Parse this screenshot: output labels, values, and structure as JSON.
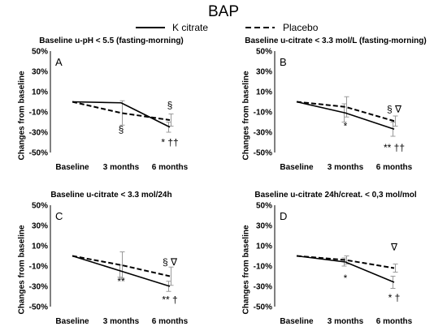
{
  "title": "BAP",
  "legend": {
    "k_citrate": "K citrate",
    "placebo": "Placebo"
  },
  "chart_data": [
    {
      "type": "line",
      "panel_letter": "A",
      "title": "Baseline u-pH < 5.5 (fasting-morning)",
      "ylabel": "Changes from baseline",
      "categories": [
        "Baseline",
        "3 months",
        "6 months"
      ],
      "y_ticks": [
        "50%",
        "30%",
        "10%",
        "-10%",
        "-30%",
        "-50%"
      ],
      "ylim": [
        -50,
        50
      ],
      "grid": false,
      "series": [
        {
          "name": "K citrate",
          "style": "solid",
          "values": [
            0,
            -1,
            -25
          ],
          "errors": [
            0,
            0,
            5
          ]
        },
        {
          "name": "Placebo",
          "style": "dashed",
          "values": [
            0,
            -11,
            -18
          ],
          "errors": [
            0,
            12,
            6
          ]
        }
      ],
      "annotations": [
        {
          "text": "§",
          "x": 1,
          "y": -27
        },
        {
          "text": "§",
          "x": 2,
          "y": -3
        },
        {
          "text": "* ††",
          "x": 2,
          "y": -40
        }
      ]
    },
    {
      "type": "line",
      "panel_letter": "B",
      "title": "Baseline u-citrate < 3.3 mol/L (fasting-morning)",
      "ylabel": "Changes from baseline",
      "categories": [
        "Baseline",
        "3 months",
        "6 months"
      ],
      "y_ticks": [
        "50%",
        "30%",
        "10%",
        "-10%",
        "-30%",
        "-50%"
      ],
      "ylim": [
        -50,
        50
      ],
      "grid": false,
      "series": [
        {
          "name": "K citrate",
          "style": "solid",
          "values": [
            0,
            -11,
            -27
          ],
          "errors": [
            0,
            9,
            7
          ]
        },
        {
          "name": "Placebo",
          "style": "dashed",
          "values": [
            0,
            -5,
            -19
          ],
          "errors": [
            0,
            10,
            5
          ]
        }
      ],
      "annotations": [
        {
          "text": "*",
          "x": 1,
          "y": -24
        },
        {
          "text": "§ ∇",
          "x": 2,
          "y": -7
        },
        {
          "text": "** ††",
          "x": 2,
          "y": -45
        }
      ]
    },
    {
      "type": "line",
      "panel_letter": "C",
      "title": "Baseline u-citrate < 3.3 mol/24h",
      "ylabel": "Changes from baseline",
      "categories": [
        "Baseline",
        "3 months",
        "6 months"
      ],
      "y_ticks": [
        "50%",
        "30%",
        "10%",
        "-10%",
        "-30%",
        "-50%"
      ],
      "ylim": [
        -50,
        50
      ],
      "grid": false,
      "series": [
        {
          "name": "K citrate",
          "style": "solid",
          "values": [
            0,
            -15,
            -30
          ],
          "errors": [
            0,
            6,
            5
          ]
        },
        {
          "name": "Placebo",
          "style": "dashed",
          "values": [
            0,
            -9,
            -20
          ],
          "errors": [
            0,
            13,
            9
          ]
        }
      ],
      "annotations": [
        {
          "text": "**",
          "x": 1,
          "y": -25
        },
        {
          "text": "§ ∇",
          "x": 2,
          "y": -6
        },
        {
          "text": "** †",
          "x": 2,
          "y": -43
        }
      ]
    },
    {
      "type": "line",
      "panel_letter": "D",
      "title": "Baseline u-citrate 24h/creat. < 0,3 mol/mol",
      "ylabel": "Changes from baseline",
      "categories": [
        "Baseline",
        "3 months",
        "6 months"
      ],
      "y_ticks": [
        "50%",
        "30%",
        "10%",
        "-10%",
        "-30%",
        "-50%"
      ],
      "ylim": [
        -50,
        50
      ],
      "grid": false,
      "series": [
        {
          "name": "K citrate",
          "style": "solid",
          "values": [
            0,
            -6,
            -26
          ],
          "errors": [
            0,
            4,
            6
          ]
        },
        {
          "name": "Placebo",
          "style": "dashed",
          "values": [
            0,
            -4,
            -12
          ],
          "errors": [
            0,
            4,
            4
          ]
        }
      ],
      "annotations": [
        {
          "text": "*",
          "x": 1,
          "y": -22
        },
        {
          "text": "∇",
          "x": 2,
          "y": 9
        },
        {
          "text": "* †",
          "x": 2,
          "y": -41
        }
      ]
    }
  ]
}
